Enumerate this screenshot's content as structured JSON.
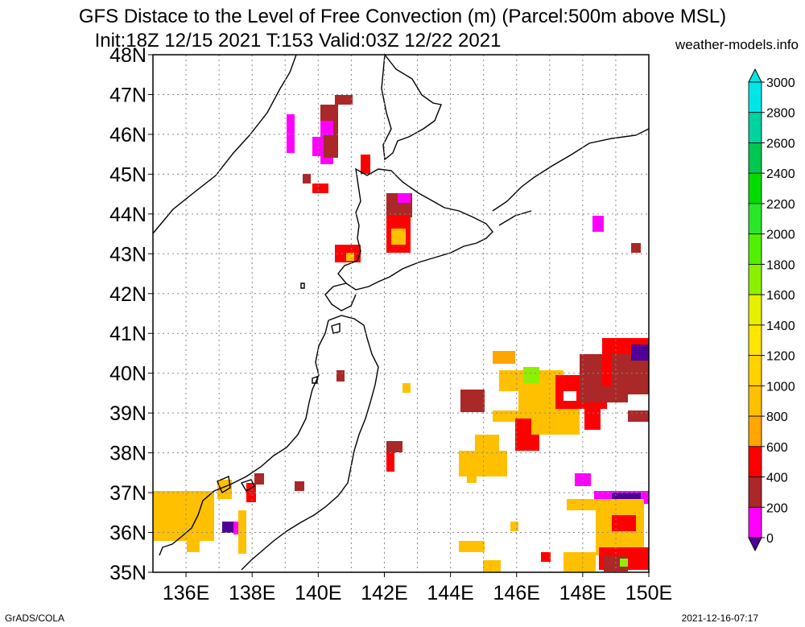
{
  "header": {
    "title_line1": "GFS Distace to the Level of Free Convection (m) (Parcel:500m above MSL)",
    "title_line2": "Init:18Z 12/15 2021 T:153 Valid:03Z 12/22 2021",
    "site": "weather-models.info"
  },
  "footer": {
    "credit": "GrADS/COLA",
    "timestamp": "2021-12-16-07:17"
  },
  "map": {
    "lat_labels": [
      "48N",
      "47N",
      "46N",
      "45N",
      "44N",
      "43N",
      "42N",
      "41N",
      "40N",
      "39N",
      "38N",
      "37N",
      "36N",
      "35N"
    ],
    "lon_labels": [
      "136E",
      "138E",
      "140E",
      "142E",
      "144E",
      "146E",
      "148E",
      "150E"
    ],
    "lat_range": [
      35,
      48
    ],
    "lon_range": [
      135,
      150
    ]
  },
  "colorbar": {
    "labels": [
      "3000",
      "2800",
      "2600",
      "2400",
      "2200",
      "2000",
      "1800",
      "1600",
      "1400",
      "1200",
      "1000",
      "800",
      "600",
      "400",
      "200",
      "0"
    ],
    "colors": [
      "#00e6e6",
      "#00d2a0",
      "#00c850",
      "#00dc00",
      "#28e628",
      "#50f000",
      "#8cf000",
      "#e6f000",
      "#ffe600",
      "#ffd200",
      "#ffc000",
      "#ffa500",
      "#ff0000",
      "#aa2828",
      "#ff00ff",
      "#500096"
    ]
  }
}
